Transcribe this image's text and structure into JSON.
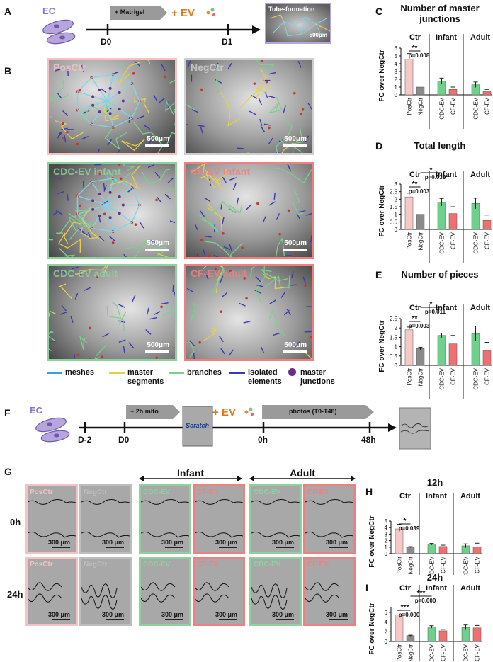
{
  "letters": {
    "A": "A",
    "B": "B",
    "C": "C",
    "D": "D",
    "E": "E",
    "F": "F",
    "G": "G",
    "H": "H",
    "I": "I"
  },
  "timeline_a": {
    "cell": "EC",
    "matrigel": "+ Matrigel",
    "ev": "+ EV",
    "d0": "D0",
    "d1": "D1",
    "tube_title": "Tube-formation",
    "tube_scale": "500μm"
  },
  "panel_b": {
    "scale": "500μm",
    "tiles": [
      {
        "title": "PosCtr",
        "color": "#f4c2c2"
      },
      {
        "title": "NegCtr",
        "color": "#cfcfcf"
      },
      {
        "title": "CDC-EV infant",
        "color": "#8fd19e"
      },
      {
        "title": "CF-EV infant",
        "color": "#f08080"
      },
      {
        "title": "CDC-EV adult",
        "color": "#8fd19e"
      },
      {
        "title": "CF-EV adult",
        "color": "#f08080"
      }
    ],
    "legend": {
      "meshes": "meshes",
      "master_segments_1": "master",
      "master_segments_2": "segments",
      "branches": "branches",
      "isolated_1": "isolated",
      "isolated_2": "elements",
      "junctions_1": "master",
      "junctions_2": "junctions"
    }
  },
  "timeline_f": {
    "cell": "EC",
    "mito": "+ 2h mito",
    "scratch": "Scratch",
    "ev": "+ EV",
    "photos": "photos (T0-T48)",
    "dm2": "D-2",
    "d0": "D0",
    "h0": "0h",
    "h48": "48h"
  },
  "panel_g": {
    "infant": "Infant",
    "adult": "Adult",
    "row_0h": "0h",
    "row_24h": "24h",
    "scale": "300 μm",
    "tiles": [
      "PosCtr",
      "NegCtr",
      "CDC-EV",
      "CF-EV",
      "CDC-EV",
      "CF-EV"
    ]
  },
  "colors": {
    "posctr": "#f8c8c8",
    "negctr": "#8a8a8a",
    "cdc": "#6fd08c",
    "cf": "#f07070"
  },
  "chart_data": [
    {
      "id": "C",
      "type": "bar",
      "title": "Number of master junctions",
      "ylabel": "FC over NegCtr",
      "ylim": [
        0,
        6
      ],
      "ticks": [
        0,
        1,
        2,
        3,
        4,
        5,
        6
      ],
      "groups": [
        "Ctr",
        "Infant",
        "Adult"
      ],
      "categories": [
        "PosCtr",
        "NegCtr",
        "CDC-EV",
        "CF-EV",
        "CDC-EV",
        "CF-EV"
      ],
      "values": [
        4.6,
        1.0,
        1.75,
        0.7,
        1.3,
        0.45
      ],
      "errors": [
        0.7,
        0.0,
        0.4,
        0.3,
        0.35,
        0.25
      ],
      "annotations": [
        {
          "stars": "**",
          "p": "p=0.008"
        }
      ]
    },
    {
      "id": "D",
      "type": "bar",
      "title": "Total length",
      "ylabel": "FC over NegCtr",
      "ylim": [
        0,
        3
      ],
      "ticks": [
        "0",
        "0.5",
        "1",
        "1.5",
        "2",
        "2.5",
        "3"
      ],
      "groups": [
        "Ctr",
        "Infant",
        "Adult"
      ],
      "categories": [
        "PosCtr",
        "NegCtr",
        "CDC-EV",
        "CF-EV",
        "CDC-EV",
        "CF-EV"
      ],
      "values": [
        2.15,
        1.0,
        1.8,
        1.05,
        1.72,
        0.6
      ],
      "errors": [
        0.25,
        0.0,
        0.25,
        0.45,
        0.35,
        0.35
      ],
      "annotations": [
        {
          "stars": "**",
          "p": "p=0.003"
        },
        {
          "stars": "*",
          "p": "p=0.039"
        }
      ]
    },
    {
      "id": "E",
      "type": "bar",
      "title": "Number of pieces",
      "ylabel": "FC over NegCtr",
      "ylim": [
        0,
        2.5
      ],
      "ticks": [
        "0",
        "0.5",
        "1",
        "1.5",
        "2",
        "2.5"
      ],
      "groups": [
        "Ctr",
        "Infant",
        "Adult"
      ],
      "categories": [
        "PosCtr",
        "NegCtr",
        "CDC-EV",
        "CF-EV",
        "CDC-EV",
        "CF-EV"
      ],
      "values": [
        1.9,
        0.9,
        1.6,
        1.15,
        1.7,
        0.78
      ],
      "errors": [
        0.15,
        0.07,
        0.12,
        0.45,
        0.4,
        0.45
      ],
      "annotations": [
        {
          "stars": "**",
          "p": "p=0.003"
        },
        {
          "stars": "*",
          "p": "p=0.011"
        }
      ]
    },
    {
      "id": "H",
      "type": "bar",
      "title": "12h",
      "ylabel": "FC over NegCtr",
      "ylim": [
        0,
        5
      ],
      "ticks": [
        "0",
        "1",
        "2",
        "3",
        "4",
        "5"
      ],
      "groups": [
        "Ctr",
        "Infant",
        "Adult"
      ],
      "categories": [
        "PosCtr",
        "NegCtr",
        "CDC-EV",
        "CF-EV",
        "CDC-EV",
        "CF-EV"
      ],
      "values": [
        3.8,
        1.0,
        1.45,
        1.1,
        1.2,
        1.05
      ],
      "errors": [
        0.7,
        0.08,
        0.12,
        0.2,
        0.3,
        0.55
      ],
      "annotations": [
        {
          "stars": "*",
          "p": "p=0.039"
        }
      ]
    },
    {
      "id": "I",
      "type": "bar",
      "title": "24h",
      "ylabel": "FC over NegCtr",
      "ylim": [
        0,
        7
      ],
      "ticks": [
        "0",
        "2",
        "4",
        "6"
      ],
      "groups": [
        "Ctr",
        "Infant",
        "Adult"
      ],
      "categories": [
        "PosCtr",
        "NegCtr",
        "CDC-EV",
        "CF-EV",
        "CDC-EV",
        "CF-EV"
      ],
      "values": [
        5.5,
        1.2,
        3.0,
        2.2,
        2.9,
        2.8
      ],
      "errors": [
        0.9,
        0.1,
        0.25,
        0.3,
        0.5,
        0.5
      ],
      "annotations": [
        {
          "stars": "***",
          "p": "p=0.000"
        },
        {
          "stars": "***",
          "p": "p=0.000"
        }
      ]
    }
  ]
}
